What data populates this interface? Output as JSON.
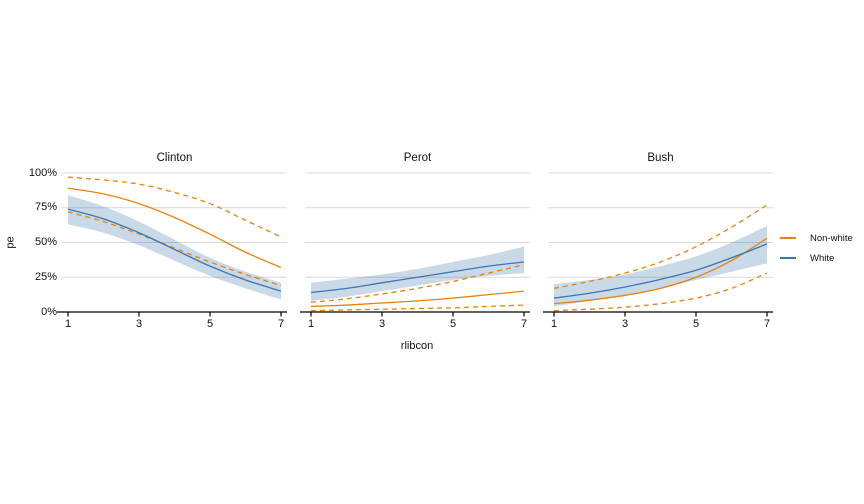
{
  "figure": {
    "y_axis_label": "pe",
    "x_axis_label": "rlibcon"
  },
  "legend": {
    "items": [
      {
        "label": "Non-white",
        "color": "#E8820C"
      },
      {
        "label": "White",
        "color": "#3D76AE"
      }
    ]
  },
  "colors": {
    "nonwhite": "#E8820C",
    "white": "#3D76AE",
    "ribbon_fill": "rgba(61,118,174,0.28)",
    "gridline": "#D9D9D9",
    "axis_line": "#000000",
    "text": "#111111"
  },
  "chart_data": {
    "type": "line",
    "title": "",
    "xlabel": "rlibcon",
    "ylabel": "pe",
    "x": [
      1,
      2,
      3,
      4,
      5,
      6,
      7
    ],
    "x_ticks": [
      1,
      3,
      5,
      7
    ],
    "x_tick_labels": [
      "1",
      "3",
      "5",
      "7"
    ],
    "ylim": [
      0,
      100
    ],
    "y_ticks": [
      0,
      25,
      50,
      75,
      100
    ],
    "y_tick_labels": [
      "0%",
      "25%",
      "50%",
      "75%",
      "100%"
    ],
    "grid": "horizontal-only",
    "legend_position": "right",
    "units": "percent",
    "facets": [
      {
        "title": "Clinton",
        "series": [
          {
            "name": "White",
            "group": "White",
            "style": "solid",
            "color": "#3D76AE",
            "values": [
              74,
              67,
              57,
              45,
              33,
              23,
              15
            ],
            "band_lower": [
              63,
              57,
              48,
              37,
              26,
              17,
              9
            ],
            "band_upper": [
              84,
              76,
              65,
              52,
              39,
              29,
              21
            ]
          },
          {
            "name": "Non-white",
            "group": "Non-white",
            "style": "solid",
            "color": "#E8820C",
            "values": [
              89,
              85,
              78,
              68,
              56,
              43,
              32
            ]
          },
          {
            "name": "Non-white upper CI",
            "group": "Non-white",
            "style": "dashed",
            "color": "#E8820C",
            "values": [
              97,
              95,
              92,
              86,
              78,
              66,
              54
            ]
          },
          {
            "name": "Non-white lower CI",
            "group": "Non-white",
            "style": "dashed",
            "color": "#E8820C",
            "values": [
              72,
              65,
              56,
              46,
              36,
              27,
              19
            ]
          }
        ]
      },
      {
        "title": "Perot",
        "series": [
          {
            "name": "White",
            "group": "White",
            "style": "solid",
            "color": "#3D76AE",
            "values": [
              14,
              17,
              21,
              25,
              29,
              33,
              36
            ],
            "band_lower": [
              8,
              11,
              15,
              19,
              23,
              26,
              28
            ],
            "band_upper": [
              21,
              24,
              27,
              31,
              36,
              41,
              47
            ]
          },
          {
            "name": "Non-white",
            "group": "Non-white",
            "style": "solid",
            "color": "#E8820C",
            "values": [
              4,
              5,
              6.5,
              8,
              10,
              12.5,
              15
            ]
          },
          {
            "name": "Non-white upper CI",
            "group": "Non-white",
            "style": "dashed",
            "color": "#E8820C",
            "values": [
              7,
              9.5,
              13,
              17,
              22,
              28,
              34
            ]
          },
          {
            "name": "Non-white lower CI",
            "group": "Non-white",
            "style": "dashed",
            "color": "#E8820C",
            "values": [
              1,
              1.5,
              2,
              2.5,
              3,
              4,
              5
            ]
          }
        ]
      },
      {
        "title": "Bush",
        "series": [
          {
            "name": "White",
            "group": "White",
            "style": "solid",
            "color": "#3D76AE",
            "values": [
              10,
              13.5,
              18,
              23.5,
              30,
              39,
              49
            ],
            "band_lower": [
              4,
              8,
              12,
              17,
              23,
              29,
              35
            ],
            "band_upper": [
              20,
              23,
              27,
              33,
              40,
              50,
              62
            ]
          },
          {
            "name": "Non-white",
            "group": "Non-white",
            "style": "solid",
            "color": "#E8820C",
            "values": [
              6,
              8.5,
              12,
              17,
              25,
              37,
              53
            ]
          },
          {
            "name": "Non-white upper CI",
            "group": "Non-white",
            "style": "dashed",
            "color": "#E8820C",
            "values": [
              17,
              22,
              28,
              36,
              47,
              61,
              77
            ]
          },
          {
            "name": "Non-white lower CI",
            "group": "Non-white",
            "style": "dashed",
            "color": "#E8820C",
            "values": [
              1,
              2,
              3.5,
              6,
              10,
              17,
              28
            ]
          }
        ]
      }
    ]
  }
}
